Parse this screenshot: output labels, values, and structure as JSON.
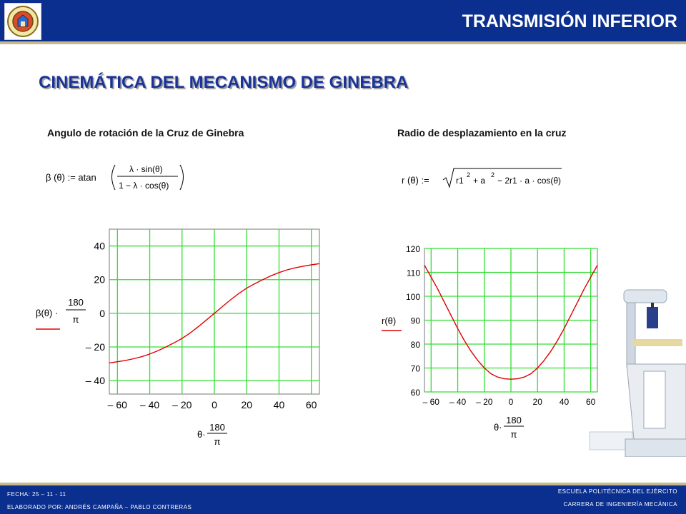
{
  "header": {
    "title": "TRANSMISIÓN INFERIOR"
  },
  "slide": {
    "main_title": "CINEMÁTICA DEL MECANISMO DE GINEBRA",
    "left_subtitle": "Angulo de rotación de la Cruz de Ginebra",
    "right_subtitle": "Radio de desplazamiento en la cruz"
  },
  "footer": {
    "date": "FECHA: 25 – 11 - 11",
    "author": "ELABORADO POR: ANDRÉS CAMPAÑA – PABLO CONTRERAS",
    "school": "ESCUELA POLITÉCNICA DEL EJÉRCITO",
    "career": "CARRERA DE INGENIERÍA MECÁNICA"
  },
  "colors": {
    "bar": "#0b2f8f",
    "stripe": "#c8b98a",
    "title": "#1a3399",
    "grid": "#33dd33",
    "curve": "#e00000"
  },
  "chart_data": [
    {
      "type": "line",
      "xlabel": "θ·180/π",
      "ylabel": "β(θ)·180/π",
      "xlim": [
        -65,
        65
      ],
      "ylim": [
        -48,
        50
      ],
      "xticks": [
        -60,
        -40,
        -20,
        0,
        20,
        40,
        60
      ],
      "yticks": [
        -40,
        -20,
        0,
        20,
        40
      ],
      "tick_labels_x": [
        "– 60",
        "– 40",
        "– 20",
        "0",
        "20",
        "40",
        "60"
      ],
      "tick_labels_y": [
        "– 40",
        "– 20",
        "0",
        "20",
        "40"
      ],
      "grid": true,
      "x": [
        -65,
        -60,
        -55,
        -50,
        -45,
        -40,
        -35,
        -30,
        -25,
        -20,
        -15,
        -10,
        -5,
        0,
        5,
        10,
        15,
        20,
        25,
        30,
        35,
        40,
        45,
        50,
        55,
        60,
        65
      ],
      "y": [
        -29.5,
        -28.8,
        -28,
        -27,
        -25.8,
        -24.2,
        -22.3,
        -20,
        -17.6,
        -14.9,
        -11.7,
        -8,
        -4,
        0,
        4,
        8,
        11.7,
        14.9,
        17.6,
        20,
        22.3,
        24.2,
        25.8,
        27,
        28,
        28.8,
        29.5
      ]
    },
    {
      "type": "line",
      "xlabel": "θ·180/π",
      "ylabel": "r(θ)",
      "xlim": [
        -65,
        65
      ],
      "ylim": [
        60,
        120
      ],
      "xticks": [
        -60,
        -40,
        -20,
        0,
        20,
        40,
        60
      ],
      "yticks": [
        60,
        70,
        80,
        90,
        100,
        110,
        120
      ],
      "tick_labels_x": [
        "– 60",
        "– 40",
        "– 20",
        "0",
        "20",
        "40",
        "60"
      ],
      "tick_labels_y": [
        "60",
        "70",
        "80",
        "90",
        "100",
        "110",
        "120"
      ],
      "grid": true,
      "x": [
        -65,
        -60,
        -55,
        -50,
        -45,
        -40,
        -35,
        -30,
        -25,
        -20,
        -15,
        -10,
        -5,
        0,
        5,
        10,
        15,
        20,
        25,
        30,
        35,
        40,
        45,
        50,
        55,
        60,
        65
      ],
      "y": [
        113,
        108,
        103,
        97.5,
        92,
        86.5,
        81.5,
        77,
        73.2,
        70,
        67.6,
        66.2,
        65.5,
        65.3,
        65.5,
        66.2,
        67.6,
        70,
        73.2,
        77,
        81.5,
        86.5,
        92,
        97.5,
        103,
        108,
        113
      ]
    }
  ]
}
